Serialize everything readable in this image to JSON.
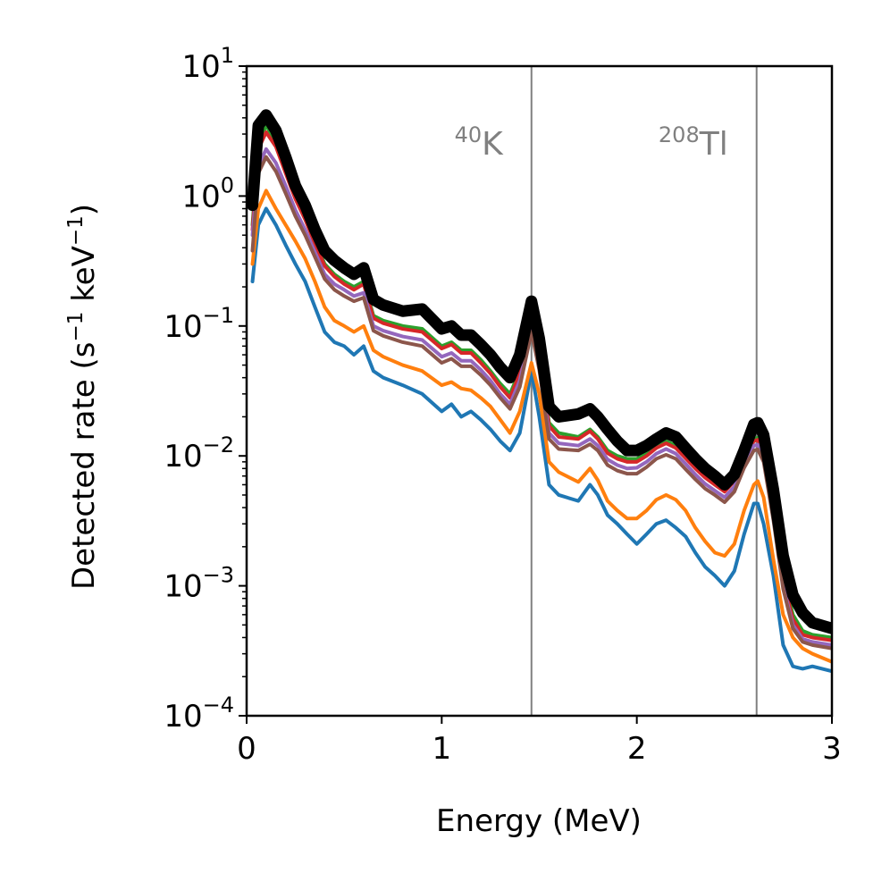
{
  "chart_data": {
    "type": "line",
    "xlabel": "Energy (MeV)",
    "ylabel": {
      "main": "Detected rate (s",
      "sup1": "−1",
      "mid": " keV",
      "sup2": "−1",
      "end": ")"
    },
    "xlim": [
      0,
      3
    ],
    "ylim": [
      0.0001,
      10
    ],
    "yscale": "log",
    "grid": false,
    "legend": "none",
    "x_ticks": [
      0,
      1,
      2,
      3
    ],
    "x_tick_labels": [
      "0",
      "1",
      "2",
      "3"
    ],
    "y_ticks": [
      {
        "value": 10,
        "base": "10",
        "exp": "1"
      },
      {
        "value": 1,
        "base": "10",
        "exp": "0"
      },
      {
        "value": 0.1,
        "base": "10",
        "exp": "−1"
      },
      {
        "value": 0.01,
        "base": "10",
        "exp": "−2"
      },
      {
        "value": 0.001,
        "base": "10",
        "exp": "−3"
      },
      {
        "value": 0.0001,
        "base": "10",
        "exp": "−4"
      }
    ],
    "reference_lines": [
      {
        "x": 1.46,
        "label_sup": "40",
        "label_text": "K",
        "color": "#808080"
      },
      {
        "x": 2.614,
        "label_sup": "208",
        "label_text": "Tl",
        "color": "#808080"
      }
    ],
    "x": [
      0.03,
      0.06,
      0.1,
      0.15,
      0.2,
      0.25,
      0.3,
      0.35,
      0.4,
      0.45,
      0.5,
      0.55,
      0.6,
      0.65,
      0.7,
      0.8,
      0.9,
      1.0,
      1.05,
      1.1,
      1.15,
      1.2,
      1.25,
      1.3,
      1.35,
      1.4,
      1.46,
      1.5,
      1.55,
      1.6,
      1.7,
      1.76,
      1.8,
      1.85,
      1.9,
      1.95,
      2.0,
      2.05,
      2.1,
      2.15,
      2.2,
      2.25,
      2.3,
      2.35,
      2.4,
      2.45,
      2.5,
      2.55,
      2.6,
      2.62,
      2.65,
      2.7,
      2.75,
      2.8,
      2.85,
      2.9,
      3.0
    ],
    "series": [
      {
        "color": "#1f77b4",
        "width": 4,
        "values": [
          0.22,
          0.6,
          0.8,
          0.6,
          0.42,
          0.3,
          0.22,
          0.14,
          0.09,
          0.075,
          0.07,
          0.06,
          0.07,
          0.045,
          0.04,
          0.035,
          0.03,
          0.022,
          0.025,
          0.02,
          0.022,
          0.019,
          0.016,
          0.013,
          0.011,
          0.015,
          0.045,
          0.02,
          0.006,
          0.005,
          0.0045,
          0.006,
          0.005,
          0.0035,
          0.003,
          0.0025,
          0.0021,
          0.0025,
          0.003,
          0.0032,
          0.0028,
          0.0024,
          0.0018,
          0.0014,
          0.0012,
          0.001,
          0.0013,
          0.0025,
          0.0043,
          0.0043,
          0.003,
          0.0012,
          0.00035,
          0.00024,
          0.00023,
          0.00024,
          0.00022
        ]
      },
      {
        "color": "#ff7f0e",
        "width": 4,
        "values": [
          0.3,
          0.8,
          1.1,
          0.8,
          0.6,
          0.45,
          0.33,
          0.22,
          0.14,
          0.11,
          0.1,
          0.09,
          0.1,
          0.065,
          0.058,
          0.05,
          0.045,
          0.035,
          0.037,
          0.033,
          0.032,
          0.028,
          0.024,
          0.019,
          0.015,
          0.022,
          0.052,
          0.03,
          0.009,
          0.0075,
          0.0063,
          0.008,
          0.0065,
          0.0045,
          0.0038,
          0.0033,
          0.0033,
          0.0038,
          0.0046,
          0.005,
          0.0046,
          0.0038,
          0.0028,
          0.0022,
          0.0018,
          0.0017,
          0.0021,
          0.0038,
          0.006,
          0.0064,
          0.0048,
          0.0016,
          0.0006,
          0.0004,
          0.00033,
          0.0003,
          0.00026
        ]
      },
      {
        "color": "#2ca02c",
        "width": 4,
        "values": [
          0.6,
          2.5,
          3.5,
          2.6,
          1.6,
          1.0,
          0.7,
          0.45,
          0.3,
          0.25,
          0.22,
          0.2,
          0.22,
          0.12,
          0.11,
          0.1,
          0.095,
          0.07,
          0.075,
          0.065,
          0.065,
          0.055,
          0.045,
          0.036,
          0.03,
          0.045,
          0.11,
          0.06,
          0.018,
          0.015,
          0.014,
          0.016,
          0.014,
          0.011,
          0.01,
          0.0095,
          0.0095,
          0.0105,
          0.012,
          0.013,
          0.012,
          0.01,
          0.0083,
          0.007,
          0.0062,
          0.0055,
          0.0066,
          0.01,
          0.0135,
          0.0138,
          0.011,
          0.004,
          0.0012,
          0.0006,
          0.00045,
          0.00042,
          0.0004
        ]
      },
      {
        "color": "#d62728",
        "width": 4,
        "values": [
          0.55,
          2.3,
          3.1,
          2.4,
          1.5,
          0.95,
          0.66,
          0.43,
          0.29,
          0.24,
          0.21,
          0.19,
          0.21,
          0.115,
          0.105,
          0.095,
          0.09,
          0.067,
          0.072,
          0.062,
          0.062,
          0.052,
          0.043,
          0.034,
          0.028,
          0.043,
          0.105,
          0.057,
          0.017,
          0.014,
          0.0135,
          0.0155,
          0.0135,
          0.0105,
          0.0095,
          0.009,
          0.009,
          0.01,
          0.0115,
          0.0125,
          0.0115,
          0.0096,
          0.008,
          0.0068,
          0.006,
          0.0053,
          0.0064,
          0.0097,
          0.013,
          0.0133,
          0.0105,
          0.0038,
          0.0011,
          0.00055,
          0.00042,
          0.0004,
          0.00038
        ]
      },
      {
        "color": "#9467bd",
        "width": 4,
        "values": [
          0.5,
          1.7,
          2.3,
          1.8,
          1.2,
          0.78,
          0.55,
          0.37,
          0.25,
          0.21,
          0.19,
          0.17,
          0.18,
          0.1,
          0.092,
          0.083,
          0.078,
          0.058,
          0.062,
          0.054,
          0.054,
          0.046,
          0.038,
          0.03,
          0.025,
          0.038,
          0.095,
          0.05,
          0.015,
          0.0125,
          0.012,
          0.0135,
          0.012,
          0.0094,
          0.0085,
          0.008,
          0.0081,
          0.009,
          0.0104,
          0.0113,
          0.0104,
          0.0087,
          0.0072,
          0.0061,
          0.0054,
          0.0048,
          0.0058,
          0.0088,
          0.012,
          0.0122,
          0.0097,
          0.0035,
          0.001,
          0.0005,
          0.00039,
          0.00037,
          0.00035
        ]
      },
      {
        "color": "#8c564b",
        "width": 4,
        "values": [
          0.38,
          1.5,
          2.0,
          1.55,
          1.05,
          0.7,
          0.5,
          0.34,
          0.23,
          0.19,
          0.17,
          0.155,
          0.165,
          0.092,
          0.084,
          0.075,
          0.07,
          0.052,
          0.056,
          0.049,
          0.049,
          0.042,
          0.035,
          0.028,
          0.023,
          0.034,
          0.09,
          0.046,
          0.0135,
          0.0113,
          0.011,
          0.0123,
          0.011,
          0.0085,
          0.0077,
          0.0073,
          0.0073,
          0.0082,
          0.0095,
          0.0102,
          0.0095,
          0.0079,
          0.0066,
          0.0056,
          0.005,
          0.0044,
          0.0053,
          0.0081,
          0.011,
          0.0112,
          0.009,
          0.0032,
          0.00095,
          0.00047,
          0.00037,
          0.00035,
          0.00033
        ]
      },
      {
        "color": "#000000",
        "width": 13,
        "values": [
          0.85,
          3.5,
          4.2,
          3.2,
          2.0,
          1.2,
          0.85,
          0.55,
          0.38,
          0.32,
          0.28,
          0.25,
          0.28,
          0.16,
          0.145,
          0.13,
          0.135,
          0.095,
          0.1,
          0.085,
          0.085,
          0.072,
          0.06,
          0.048,
          0.04,
          0.06,
          0.155,
          0.08,
          0.024,
          0.02,
          0.021,
          0.023,
          0.02,
          0.016,
          0.013,
          0.011,
          0.011,
          0.012,
          0.0135,
          0.015,
          0.014,
          0.0115,
          0.0095,
          0.008,
          0.007,
          0.006,
          0.0072,
          0.011,
          0.0175,
          0.018,
          0.0145,
          0.0055,
          0.0017,
          0.00085,
          0.00062,
          0.00052,
          0.00047
        ]
      }
    ]
  }
}
